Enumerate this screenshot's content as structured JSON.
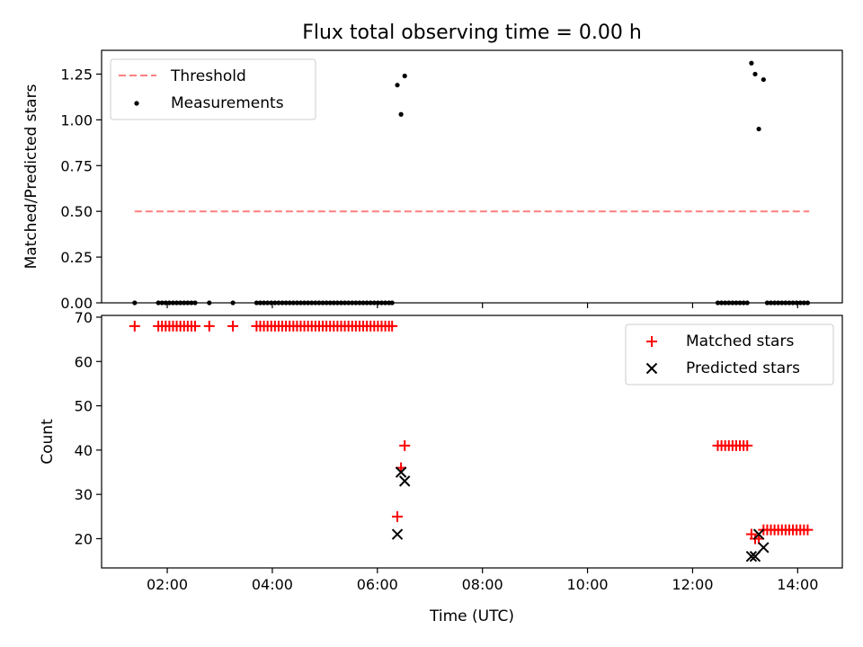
{
  "chart_data": {
    "title": "Flux total observing time = 0.00 h",
    "xlabel": "Time (UTC)",
    "xlim": [
      0.75,
      14.85
    ],
    "xticks": [
      {
        "value": 2,
        "label": "02:00"
      },
      {
        "value": 4,
        "label": "04:00"
      },
      {
        "value": 6,
        "label": "06:00"
      },
      {
        "value": 8,
        "label": "08:00"
      },
      {
        "value": 10,
        "label": "10:00"
      },
      {
        "value": 12,
        "label": "12:00"
      },
      {
        "value": 14,
        "label": "14:00"
      }
    ],
    "panels": [
      {
        "type": "scatter",
        "ylabel": "Matched/Predicted stars",
        "ylim": [
          0,
          1.38
        ],
        "yticks": [
          {
            "value": 0,
            "label": "0.00"
          },
          {
            "value": 0.25,
            "label": "0.25"
          },
          {
            "value": 0.5,
            "label": "0.50"
          },
          {
            "value": 0.75,
            "label": "0.75"
          },
          {
            "value": 1.0,
            "label": "1.00"
          },
          {
            "value": 1.25,
            "label": "1.25"
          }
        ],
        "legend": {
          "placement": "top-left",
          "threshold_label": "Threshold",
          "measurements_label": "Measurements"
        },
        "threshold": {
          "value": 0.5,
          "x_range": [
            1.38,
            14.22
          ],
          "color": "#ff7f7f"
        },
        "series": [
          {
            "name": "Measurements",
            "color": "#000000",
            "points": [
              [
                1.38,
                0
              ],
              [
                1.83,
                0
              ],
              [
                1.9,
                0
              ],
              [
                1.97,
                0
              ],
              [
                2.04,
                0
              ],
              [
                2.11,
                0
              ],
              [
                2.18,
                0
              ],
              [
                2.25,
                0
              ],
              [
                2.32,
                0
              ],
              [
                2.39,
                0
              ],
              [
                2.46,
                0
              ],
              [
                2.53,
                0
              ],
              [
                2.8,
                0
              ],
              [
                3.25,
                0
              ],
              [
                3.7,
                0
              ],
              [
                3.77,
                0
              ],
              [
                3.84,
                0
              ],
              [
                3.91,
                0
              ],
              [
                3.98,
                0
              ],
              [
                4.05,
                0
              ],
              [
                4.12,
                0
              ],
              [
                4.19,
                0
              ],
              [
                4.26,
                0
              ],
              [
                4.33,
                0
              ],
              [
                4.4,
                0
              ],
              [
                4.47,
                0
              ],
              [
                4.54,
                0
              ],
              [
                4.61,
                0
              ],
              [
                4.68,
                0
              ],
              [
                4.75,
                0
              ],
              [
                4.82,
                0
              ],
              [
                4.89,
                0
              ],
              [
                4.96,
                0
              ],
              [
                5.03,
                0
              ],
              [
                5.1,
                0
              ],
              [
                5.17,
                0
              ],
              [
                5.24,
                0
              ],
              [
                5.31,
                0
              ],
              [
                5.38,
                0
              ],
              [
                5.45,
                0
              ],
              [
                5.52,
                0
              ],
              [
                5.59,
                0
              ],
              [
                5.66,
                0
              ],
              [
                5.73,
                0
              ],
              [
                5.8,
                0
              ],
              [
                5.87,
                0
              ],
              [
                5.94,
                0
              ],
              [
                6.01,
                0
              ],
              [
                6.08,
                0
              ],
              [
                6.15,
                0
              ],
              [
                6.22,
                0
              ],
              [
                6.28,
                0
              ],
              [
                6.38,
                1.19
              ],
              [
                6.45,
                1.03
              ],
              [
                6.52,
                1.24
              ],
              [
                12.48,
                0
              ],
              [
                12.55,
                0
              ],
              [
                12.62,
                0
              ],
              [
                12.69,
                0
              ],
              [
                12.76,
                0
              ],
              [
                12.83,
                0
              ],
              [
                12.9,
                0
              ],
              [
                12.97,
                0
              ],
              [
                13.04,
                0
              ],
              [
                13.12,
                1.31
              ],
              [
                13.19,
                1.25
              ],
              [
                13.26,
                0.95
              ],
              [
                13.35,
                1.22
              ],
              [
                13.42,
                0
              ],
              [
                13.49,
                0
              ],
              [
                13.56,
                0
              ],
              [
                13.63,
                0
              ],
              [
                13.7,
                0
              ],
              [
                13.77,
                0
              ],
              [
                13.84,
                0
              ],
              [
                13.91,
                0
              ],
              [
                13.98,
                0
              ],
              [
                14.05,
                0
              ],
              [
                14.12,
                0
              ],
              [
                14.19,
                0
              ]
            ]
          }
        ]
      },
      {
        "type": "scatter",
        "ylabel": "Count",
        "ylim": [
          13.4,
          70.4
        ],
        "yticks": [
          {
            "value": 20,
            "label": "20"
          },
          {
            "value": 30,
            "label": "30"
          },
          {
            "value": 40,
            "label": "40"
          },
          {
            "value": 50,
            "label": "50"
          },
          {
            "value": 60,
            "label": "60"
          },
          {
            "value": 70,
            "label": "70"
          }
        ],
        "legend": {
          "placement": "top-right",
          "matched_label": "Matched stars",
          "predicted_label": "Predicted stars"
        },
        "series": [
          {
            "name": "Matched stars",
            "marker": "plus",
            "color": "#ff0000",
            "points": [
              [
                1.38,
                68
              ],
              [
                1.83,
                68
              ],
              [
                1.9,
                68
              ],
              [
                1.97,
                68
              ],
              [
                2.04,
                68
              ],
              [
                2.11,
                68
              ],
              [
                2.18,
                68
              ],
              [
                2.25,
                68
              ],
              [
                2.32,
                68
              ],
              [
                2.39,
                68
              ],
              [
                2.46,
                68
              ],
              [
                2.53,
                68
              ],
              [
                2.8,
                68
              ],
              [
                3.25,
                68
              ],
              [
                3.7,
                68
              ],
              [
                3.77,
                68
              ],
              [
                3.84,
                68
              ],
              [
                3.91,
                68
              ],
              [
                3.98,
                68
              ],
              [
                4.05,
                68
              ],
              [
                4.12,
                68
              ],
              [
                4.19,
                68
              ],
              [
                4.26,
                68
              ],
              [
                4.33,
                68
              ],
              [
                4.4,
                68
              ],
              [
                4.47,
                68
              ],
              [
                4.54,
                68
              ],
              [
                4.61,
                68
              ],
              [
                4.68,
                68
              ],
              [
                4.75,
                68
              ],
              [
                4.82,
                68
              ],
              [
                4.89,
                68
              ],
              [
                4.96,
                68
              ],
              [
                5.03,
                68
              ],
              [
                5.1,
                68
              ],
              [
                5.17,
                68
              ],
              [
                5.24,
                68
              ],
              [
                5.31,
                68
              ],
              [
                5.38,
                68
              ],
              [
                5.45,
                68
              ],
              [
                5.52,
                68
              ],
              [
                5.59,
                68
              ],
              [
                5.66,
                68
              ],
              [
                5.73,
                68
              ],
              [
                5.8,
                68
              ],
              [
                5.87,
                68
              ],
              [
                5.94,
                68
              ],
              [
                6.01,
                68
              ],
              [
                6.08,
                68
              ],
              [
                6.15,
                68
              ],
              [
                6.22,
                68
              ],
              [
                6.28,
                68
              ],
              [
                6.38,
                25
              ],
              [
                6.45,
                36
              ],
              [
                6.52,
                41
              ],
              [
                12.48,
                41
              ],
              [
                12.55,
                41
              ],
              [
                12.62,
                41
              ],
              [
                12.69,
                41
              ],
              [
                12.76,
                41
              ],
              [
                12.83,
                41
              ],
              [
                12.9,
                41
              ],
              [
                12.97,
                41
              ],
              [
                13.04,
                41
              ],
              [
                13.12,
                21
              ],
              [
                13.19,
                20
              ],
              [
                13.26,
                20
              ],
              [
                13.35,
                22
              ],
              [
                13.42,
                22
              ],
              [
                13.49,
                22
              ],
              [
                13.56,
                22
              ],
              [
                13.63,
                22
              ],
              [
                13.7,
                22
              ],
              [
                13.77,
                22
              ],
              [
                13.84,
                22
              ],
              [
                13.91,
                22
              ],
              [
                13.98,
                22
              ],
              [
                14.05,
                22
              ],
              [
                14.12,
                22
              ],
              [
                14.19,
                22
              ]
            ]
          },
          {
            "name": "Predicted stars",
            "marker": "x",
            "color": "#000000",
            "points": [
              [
                6.38,
                21
              ],
              [
                6.45,
                35
              ],
              [
                6.52,
                33
              ],
              [
                13.12,
                16
              ],
              [
                13.19,
                16
              ],
              [
                13.26,
                21
              ],
              [
                13.35,
                18
              ]
            ]
          }
        ]
      }
    ]
  }
}
